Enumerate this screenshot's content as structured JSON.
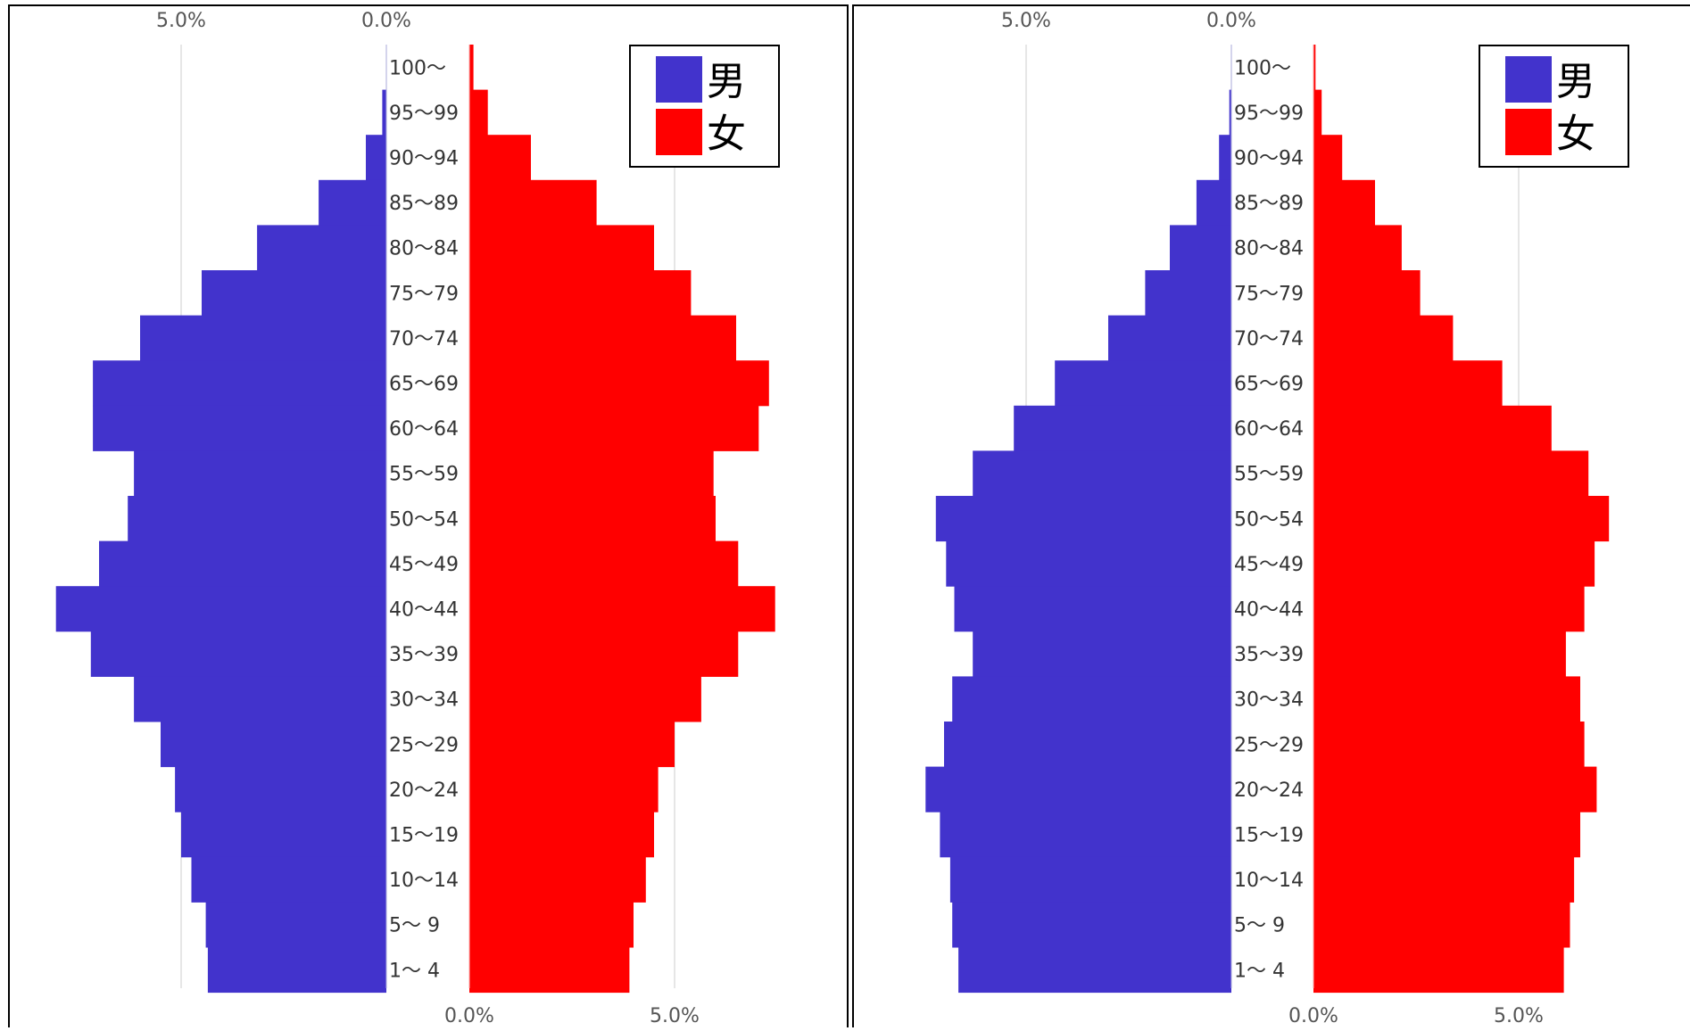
{
  "legend": {
    "male": "男",
    "female": "女"
  },
  "colors": {
    "male": "#4233cc",
    "female": "#ff0000",
    "grid": "#d6d6d6",
    "frame": "#000000",
    "tick": "#555555"
  },
  "chart_data": [
    {
      "type": "bar",
      "orientation": "horizontal-population-pyramid",
      "title": "",
      "categories": [
        "100〜",
        "95〜99",
        "90〜94",
        "85〜89",
        "80〜84",
        "75〜79",
        "70〜74",
        "65〜69",
        "60〜64",
        "55〜59",
        "50〜54",
        "45〜49",
        "40〜44",
        "35〜39",
        "30〜34",
        "25〜29",
        "20〜24",
        "15〜19",
        "10〜14",
        "5〜 9",
        "1〜 4"
      ],
      "series": [
        {
          "name": "男",
          "color": "#4233cc",
          "values": [
            0.0,
            0.1,
            0.5,
            1.65,
            3.15,
            4.5,
            6.0,
            7.15,
            7.15,
            6.15,
            6.3,
            7.0,
            8.05,
            7.2,
            6.15,
            5.5,
            5.15,
            5.0,
            4.75,
            4.4,
            4.35
          ]
        },
        {
          "name": "女",
          "color": "#ff0000",
          "values": [
            0.1,
            0.45,
            1.5,
            3.1,
            4.5,
            5.4,
            6.5,
            7.3,
            7.05,
            5.95,
            6.0,
            6.55,
            7.45,
            6.55,
            5.65,
            5.0,
            4.6,
            4.5,
            4.3,
            4.0,
            3.9
          ]
        }
      ],
      "axis": {
        "ticks": [
          0,
          5
        ],
        "tick_labels": [
          "0.0%",
          "5.0%"
        ],
        "max": 8.1
      },
      "grid": true,
      "legend_position": "top-right"
    },
    {
      "type": "bar",
      "orientation": "horizontal-population-pyramid",
      "title": "",
      "categories": [
        "100〜",
        "95〜99",
        "90〜94",
        "85〜89",
        "80〜84",
        "75〜79",
        "70〜74",
        "65〜69",
        "60〜64",
        "55〜59",
        "50〜54",
        "45〜49",
        "40〜44",
        "35〜39",
        "30〜34",
        "25〜29",
        "20〜24",
        "15〜19",
        "10〜14",
        "5〜 9",
        "1〜 4"
      ],
      "series": [
        {
          "name": "男",
          "color": "#4233cc",
          "values": [
            0.0,
            0.05,
            0.3,
            0.85,
            1.5,
            2.1,
            3.0,
            4.3,
            5.3,
            6.3,
            7.2,
            6.95,
            6.75,
            6.3,
            6.8,
            7.0,
            7.45,
            7.1,
            6.85,
            6.8,
            6.65
          ]
        },
        {
          "name": "女",
          "color": "#ff0000",
          "values": [
            0.05,
            0.2,
            0.7,
            1.5,
            2.15,
            2.6,
            3.4,
            4.6,
            5.8,
            6.7,
            7.2,
            6.85,
            6.6,
            6.15,
            6.5,
            6.6,
            6.9,
            6.5,
            6.35,
            6.25,
            6.1
          ]
        }
      ],
      "axis": {
        "ticks": [
          0,
          5
        ],
        "tick_labels": [
          "0.0%",
          "5.0%"
        ],
        "max": 8.1
      },
      "grid": true,
      "legend_position": "top-right"
    }
  ]
}
